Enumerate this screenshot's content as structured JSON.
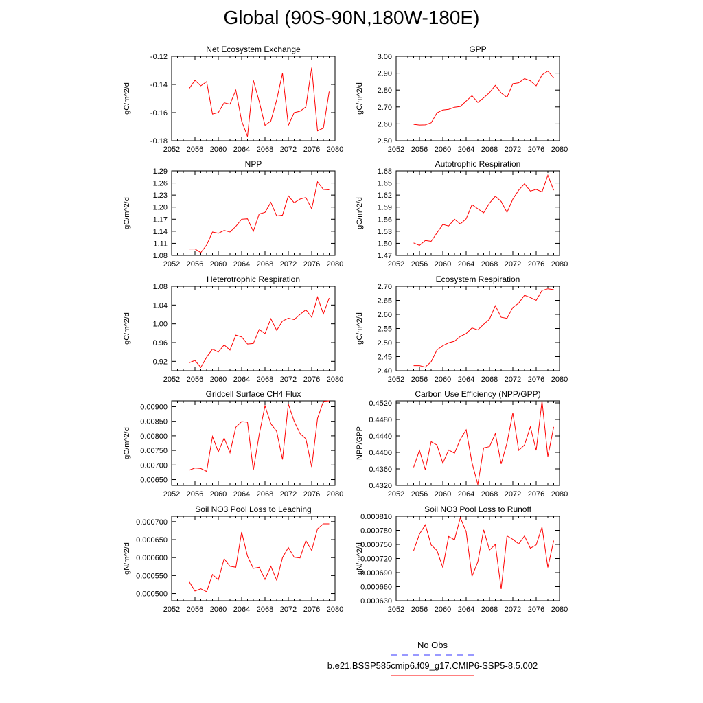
{
  "page": {
    "title": "Global (90S-90N,180W-180E)",
    "legend": {
      "obs_label": "No Obs",
      "obs_color": "#3333ff",
      "case_label": "b.e21.BSSP585cmip6.f09_g17.CMIP6-SSP5-8.5.002",
      "case_color": "#ff0000"
    }
  },
  "chart_data": [
    {
      "type": "line",
      "title": "Net Ecosystem Exchange",
      "ylabel": "gC/m^2/d",
      "xlim": [
        2052,
        2080
      ],
      "xticks": [
        2052,
        2056,
        2060,
        2064,
        2068,
        2072,
        2076,
        2080
      ],
      "ylim": [
        -0.18,
        -0.12
      ],
      "yticks": [
        "-0.18",
        "-0.16",
        "-0.14",
        "-0.12"
      ],
      "ytick_values": [
        -0.18,
        -0.16,
        -0.14,
        -0.12
      ],
      "x": [
        2055,
        2056,
        2057,
        2058,
        2059,
        2060,
        2061,
        2062,
        2063,
        2064,
        2065,
        2066,
        2067,
        2068,
        2069,
        2070,
        2071,
        2072,
        2073,
        2074,
        2075,
        2076,
        2077,
        2078,
        2079
      ],
      "series": [
        {
          "color": "#ff0000",
          "values": [
            -0.143,
            -0.137,
            -0.141,
            -0.138,
            -0.161,
            -0.16,
            -0.153,
            -0.154,
            -0.144,
            -0.166,
            -0.177,
            -0.137,
            -0.152,
            -0.169,
            -0.166,
            -0.151,
            -0.132,
            -0.169,
            -0.16,
            -0.159,
            -0.156,
            -0.128,
            -0.173,
            -0.171,
            -0.145
          ]
        }
      ]
    },
    {
      "type": "line",
      "title": "GPP",
      "ylabel": "gC/m^2/d",
      "xlim": [
        2052,
        2080
      ],
      "xticks": [
        2052,
        2056,
        2060,
        2064,
        2068,
        2072,
        2076,
        2080
      ],
      "ylim": [
        2.5,
        3.0
      ],
      "yticks": [
        "2.50",
        "2.60",
        "2.70",
        "2.80",
        "2.90",
        "3.00"
      ],
      "ytick_values": [
        2.5,
        2.6,
        2.7,
        2.8,
        2.9,
        3.0
      ],
      "x": [
        2055,
        2056,
        2057,
        2058,
        2059,
        2060,
        2061,
        2062,
        2063,
        2064,
        2065,
        2066,
        2067,
        2068,
        2069,
        2070,
        2071,
        2072,
        2073,
        2074,
        2075,
        2076,
        2077,
        2078,
        2079
      ],
      "series": [
        {
          "color": "#ff0000",
          "values": [
            2.597,
            2.593,
            2.594,
            2.606,
            2.665,
            2.682,
            2.686,
            2.698,
            2.703,
            2.735,
            2.767,
            2.727,
            2.754,
            2.785,
            2.828,
            2.783,
            2.757,
            2.838,
            2.843,
            2.868,
            2.855,
            2.825,
            2.89,
            2.912,
            2.873
          ]
        }
      ]
    },
    {
      "type": "line",
      "title": "NPP",
      "ylabel": "gC/m^2/d",
      "xlim": [
        2052,
        2080
      ],
      "xticks": [
        2052,
        2056,
        2060,
        2064,
        2068,
        2072,
        2076,
        2080
      ],
      "ylim": [
        1.08,
        1.29
      ],
      "yticks": [
        "1.08",
        "1.11",
        "1.14",
        "1.17",
        "1.20",
        "1.23",
        "1.26",
        "1.29"
      ],
      "ytick_values": [
        1.08,
        1.11,
        1.14,
        1.17,
        1.2,
        1.23,
        1.26,
        1.29
      ],
      "x": [
        2055,
        2056,
        2057,
        2058,
        2059,
        2060,
        2061,
        2062,
        2063,
        2064,
        2065,
        2066,
        2067,
        2068,
        2069,
        2070,
        2071,
        2072,
        2073,
        2074,
        2075,
        2076,
        2077,
        2078,
        2079
      ],
      "series": [
        {
          "color": "#ff0000",
          "values": [
            1.096,
            1.096,
            1.087,
            1.106,
            1.138,
            1.135,
            1.142,
            1.138,
            1.152,
            1.17,
            1.171,
            1.14,
            1.183,
            1.187,
            1.212,
            1.178,
            1.18,
            1.228,
            1.211,
            1.22,
            1.224,
            1.196,
            1.263,
            1.244,
            1.243
          ]
        }
      ]
    },
    {
      "type": "line",
      "title": "Autotrophic Respiration",
      "ylabel": "gC/m^2/d",
      "xlim": [
        2052,
        2080
      ],
      "xticks": [
        2052,
        2056,
        2060,
        2064,
        2068,
        2072,
        2076,
        2080
      ],
      "ylim": [
        1.47,
        1.68
      ],
      "yticks": [
        "1.47",
        "1.50",
        "1.53",
        "1.56",
        "1.59",
        "1.62",
        "1.65",
        "1.68"
      ],
      "ytick_values": [
        1.47,
        1.5,
        1.53,
        1.56,
        1.59,
        1.62,
        1.65,
        1.68
      ],
      "x": [
        2055,
        2056,
        2057,
        2058,
        2059,
        2060,
        2061,
        2062,
        2063,
        2064,
        2065,
        2066,
        2067,
        2068,
        2069,
        2070,
        2071,
        2072,
        2073,
        2074,
        2075,
        2076,
        2077,
        2078,
        2079
      ],
      "series": [
        {
          "color": "#ff0000",
          "values": [
            1.501,
            1.495,
            1.507,
            1.505,
            1.526,
            1.547,
            1.543,
            1.56,
            1.548,
            1.561,
            1.596,
            1.586,
            1.576,
            1.6,
            1.617,
            1.604,
            1.577,
            1.61,
            1.632,
            1.648,
            1.63,
            1.634,
            1.628,
            1.669,
            1.632
          ]
        }
      ]
    },
    {
      "type": "line",
      "title": "Heterotrophic Respiration",
      "ylabel": "gC/m^2/d",
      "xlim": [
        2052,
        2080
      ],
      "xticks": [
        2052,
        2056,
        2060,
        2064,
        2068,
        2072,
        2076,
        2080
      ],
      "ylim": [
        0.9,
        1.08
      ],
      "yticks": [
        "0.92",
        "0.96",
        "1.00",
        "1.04",
        "1.08"
      ],
      "ytick_values": [
        0.92,
        0.96,
        1.0,
        1.04,
        1.08
      ],
      "x": [
        2055,
        2056,
        2057,
        2058,
        2059,
        2060,
        2061,
        2062,
        2063,
        2064,
        2065,
        2066,
        2067,
        2068,
        2069,
        2070,
        2071,
        2072,
        2073,
        2074,
        2075,
        2076,
        2077,
        2078,
        2079
      ],
      "series": [
        {
          "color": "#ff0000",
          "values": [
            0.917,
            0.922,
            0.907,
            0.929,
            0.946,
            0.94,
            0.955,
            0.944,
            0.976,
            0.972,
            0.957,
            0.958,
            0.988,
            0.979,
            1.011,
            0.986,
            1.006,
            1.012,
            1.009,
            1.02,
            1.03,
            1.014,
            1.057,
            1.021,
            1.055
          ]
        }
      ]
    },
    {
      "type": "line",
      "title": "Ecosystem Respiration",
      "ylabel": "gC/m^2/d",
      "xlim": [
        2052,
        2080
      ],
      "xticks": [
        2052,
        2056,
        2060,
        2064,
        2068,
        2072,
        2076,
        2080
      ],
      "ylim": [
        2.4,
        2.7
      ],
      "yticks": [
        "2.40",
        "2.45",
        "2.50",
        "2.55",
        "2.60",
        "2.65",
        "2.70"
      ],
      "ytick_values": [
        2.4,
        2.45,
        2.5,
        2.55,
        2.6,
        2.65,
        2.7
      ],
      "x": [
        2055,
        2056,
        2057,
        2058,
        2059,
        2060,
        2061,
        2062,
        2063,
        2064,
        2065,
        2066,
        2067,
        2068,
        2069,
        2070,
        2071,
        2072,
        2073,
        2074,
        2075,
        2076,
        2077,
        2078,
        2079
      ],
      "series": [
        {
          "color": "#ff0000",
          "values": [
            2.418,
            2.418,
            2.413,
            2.432,
            2.474,
            2.489,
            2.499,
            2.505,
            2.522,
            2.532,
            2.552,
            2.545,
            2.565,
            2.583,
            2.631,
            2.59,
            2.586,
            2.625,
            2.64,
            2.668,
            2.66,
            2.65,
            2.685,
            2.691,
            2.688
          ]
        }
      ]
    },
    {
      "type": "line",
      "title": "Gridcell Surface CH4 Flux",
      "ylabel": "gC/m^2/d",
      "xlim": [
        2052,
        2080
      ],
      "xticks": [
        2052,
        2056,
        2060,
        2064,
        2068,
        2072,
        2076,
        2080
      ],
      "ylim": [
        0.0063,
        0.0092
      ],
      "yticks": [
        "0.00650",
        "0.00700",
        "0.00750",
        "0.00800",
        "0.00850",
        "0.00900"
      ],
      "ytick_values": [
        0.0065,
        0.007,
        0.0075,
        0.008,
        0.0085,
        0.009
      ],
      "x": [
        2055,
        2056,
        2057,
        2058,
        2059,
        2060,
        2061,
        2062,
        2063,
        2064,
        2065,
        2066,
        2067,
        2068,
        2069,
        2070,
        2071,
        2072,
        2073,
        2074,
        2075,
        2076,
        2077,
        2078,
        2079
      ],
      "series": [
        {
          "color": "#ff0000",
          "values": [
            0.00682,
            0.0069,
            0.00688,
            0.00678,
            0.00798,
            0.00745,
            0.00793,
            0.00742,
            0.0083,
            0.00849,
            0.00847,
            0.00682,
            0.00804,
            0.00903,
            0.00842,
            0.00815,
            0.00719,
            0.00909,
            0.0085,
            0.00808,
            0.0079,
            0.00693,
            0.0086,
            0.00918,
            0.0092
          ]
        }
      ]
    },
    {
      "type": "line",
      "title": "Carbon Use Efficiency (NPP/GPP)",
      "ylabel": "NPP/GPP",
      "xlim": [
        2052,
        2080
      ],
      "xticks": [
        2052,
        2056,
        2060,
        2064,
        2068,
        2072,
        2076,
        2080
      ],
      "ylim": [
        0.432,
        0.4525
      ],
      "yticks": [
        "0.4320",
        "0.4360",
        "0.4400",
        "0.4440",
        "0.4480",
        "0.4520"
      ],
      "ytick_values": [
        0.432,
        0.436,
        0.44,
        0.444,
        0.448,
        0.452
      ],
      "x": [
        2055,
        2056,
        2057,
        2058,
        2059,
        2060,
        2061,
        2062,
        2063,
        2064,
        2065,
        2066,
        2067,
        2068,
        2069,
        2070,
        2071,
        2072,
        2073,
        2074,
        2075,
        2076,
        2077,
        2078,
        2079
      ],
      "series": [
        {
          "color": "#ff0000",
          "values": [
            0.4364,
            0.4405,
            0.4358,
            0.4426,
            0.4418,
            0.4374,
            0.4406,
            0.4398,
            0.4432,
            0.4455,
            0.4375,
            0.4322,
            0.4411,
            0.4414,
            0.4446,
            0.4372,
            0.4423,
            0.4496,
            0.4405,
            0.4418,
            0.4462,
            0.4405,
            0.4525,
            0.439,
            0.4462
          ]
        }
      ]
    },
    {
      "type": "line",
      "title": "Soil NO3 Pool Loss to Leaching",
      "ylabel": "gN/m^2/d",
      "xlim": [
        2052,
        2080
      ],
      "xticks": [
        2052,
        2056,
        2060,
        2064,
        2068,
        2072,
        2076,
        2080
      ],
      "ylim": [
        0.00048,
        0.000715
      ],
      "yticks": [
        "0.000500",
        "0.000550",
        "0.000600",
        "0.000650",
        "0.000700"
      ],
      "ytick_values": [
        0.0005,
        0.00055,
        0.0006,
        0.00065,
        0.0007
      ],
      "x": [
        2055,
        2056,
        2057,
        2058,
        2059,
        2060,
        2061,
        2062,
        2063,
        2064,
        2065,
        2066,
        2067,
        2068,
        2069,
        2070,
        2071,
        2072,
        2073,
        2074,
        2075,
        2076,
        2077,
        2078,
        2079
      ],
      "series": [
        {
          "color": "#ff0000",
          "values": [
            0.000533,
            0.000507,
            0.000513,
            0.000505,
            0.000553,
            0.000538,
            0.000597,
            0.000576,
            0.000573,
            0.000671,
            0.000604,
            0.00057,
            0.000573,
            0.000539,
            0.000576,
            0.000537,
            0.0006,
            0.000628,
            0.000601,
            0.000599,
            0.000647,
            0.00062,
            0.00068,
            0.000694,
            0.000694
          ]
        }
      ]
    },
    {
      "type": "line",
      "title": "Soil NO3 Pool Loss to Runoff",
      "ylabel": "gN/m^2/d",
      "xlim": [
        2052,
        2080
      ],
      "xticks": [
        2052,
        2056,
        2060,
        2064,
        2068,
        2072,
        2076,
        2080
      ],
      "ylim": [
        0.00063,
        0.00081
      ],
      "yticks": [
        "0.000630",
        "0.000660",
        "0.000690",
        "0.000720",
        "0.000750",
        "0.000780",
        "0.000810"
      ],
      "ytick_values": [
        0.00063,
        0.00066,
        0.00069,
        0.00072,
        0.00075,
        0.00078,
        0.00081
      ],
      "x": [
        2055,
        2056,
        2057,
        2058,
        2059,
        2060,
        2061,
        2062,
        2063,
        2064,
        2065,
        2066,
        2067,
        2068,
        2069,
        2070,
        2071,
        2072,
        2073,
        2074,
        2075,
        2076,
        2077,
        2078,
        2079
      ],
      "series": [
        {
          "color": "#ff0000",
          "values": [
            0.000737,
            0.000772,
            0.000792,
            0.000749,
            0.000737,
            0.000701,
            0.000767,
            0.00076,
            0.000807,
            0.000777,
            0.000682,
            0.000713,
            0.000781,
            0.000738,
            0.00075,
            0.000655,
            0.000768,
            0.000761,
            0.000751,
            0.000768,
            0.000742,
            0.000749,
            0.000787,
            0.000701,
            0.000758
          ]
        }
      ]
    }
  ]
}
